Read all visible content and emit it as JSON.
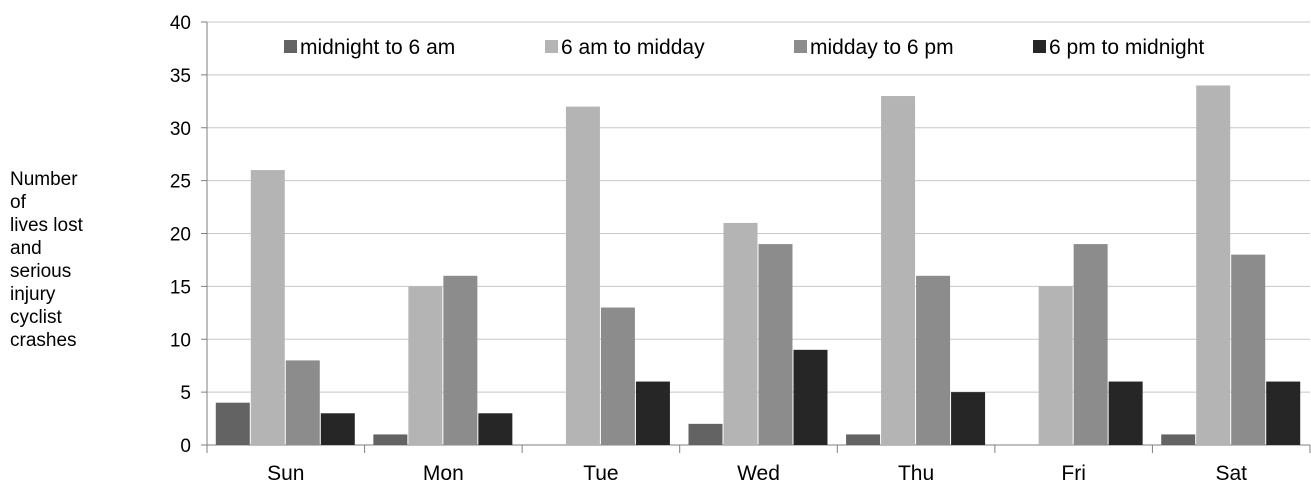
{
  "chart_data": {
    "type": "bar",
    "categories": [
      "Sun",
      "Mon",
      "Tue",
      "Wed",
      "Thu",
      "Fri",
      "Sat"
    ],
    "series": [
      {
        "name": "midnight to 6 am",
        "color": "#636363",
        "values": [
          4,
          1,
          0,
          2,
          1,
          0,
          1
        ]
      },
      {
        "name": "6 am to midday",
        "color": "#b4b4b4",
        "values": [
          26,
          15,
          32,
          21,
          33,
          15,
          34
        ]
      },
      {
        "name": "midday to 6 pm",
        "color": "#8c8c8c",
        "values": [
          8,
          16,
          13,
          19,
          16,
          19,
          18
        ]
      },
      {
        "name": "6 pm to midnight",
        "color": "#262626",
        "values": [
          3,
          3,
          6,
          9,
          5,
          6,
          6
        ]
      }
    ],
    "ylabel_lines": [
      "Number",
      "of",
      "lives lost",
      "and",
      "serious",
      "injury",
      "cyclist",
      "crashes"
    ],
    "ylim": [
      0,
      40
    ],
    "yticks": [
      0,
      5,
      10,
      15,
      20,
      25,
      30,
      35,
      40
    ],
    "grid": true,
    "legend_position": "top"
  }
}
